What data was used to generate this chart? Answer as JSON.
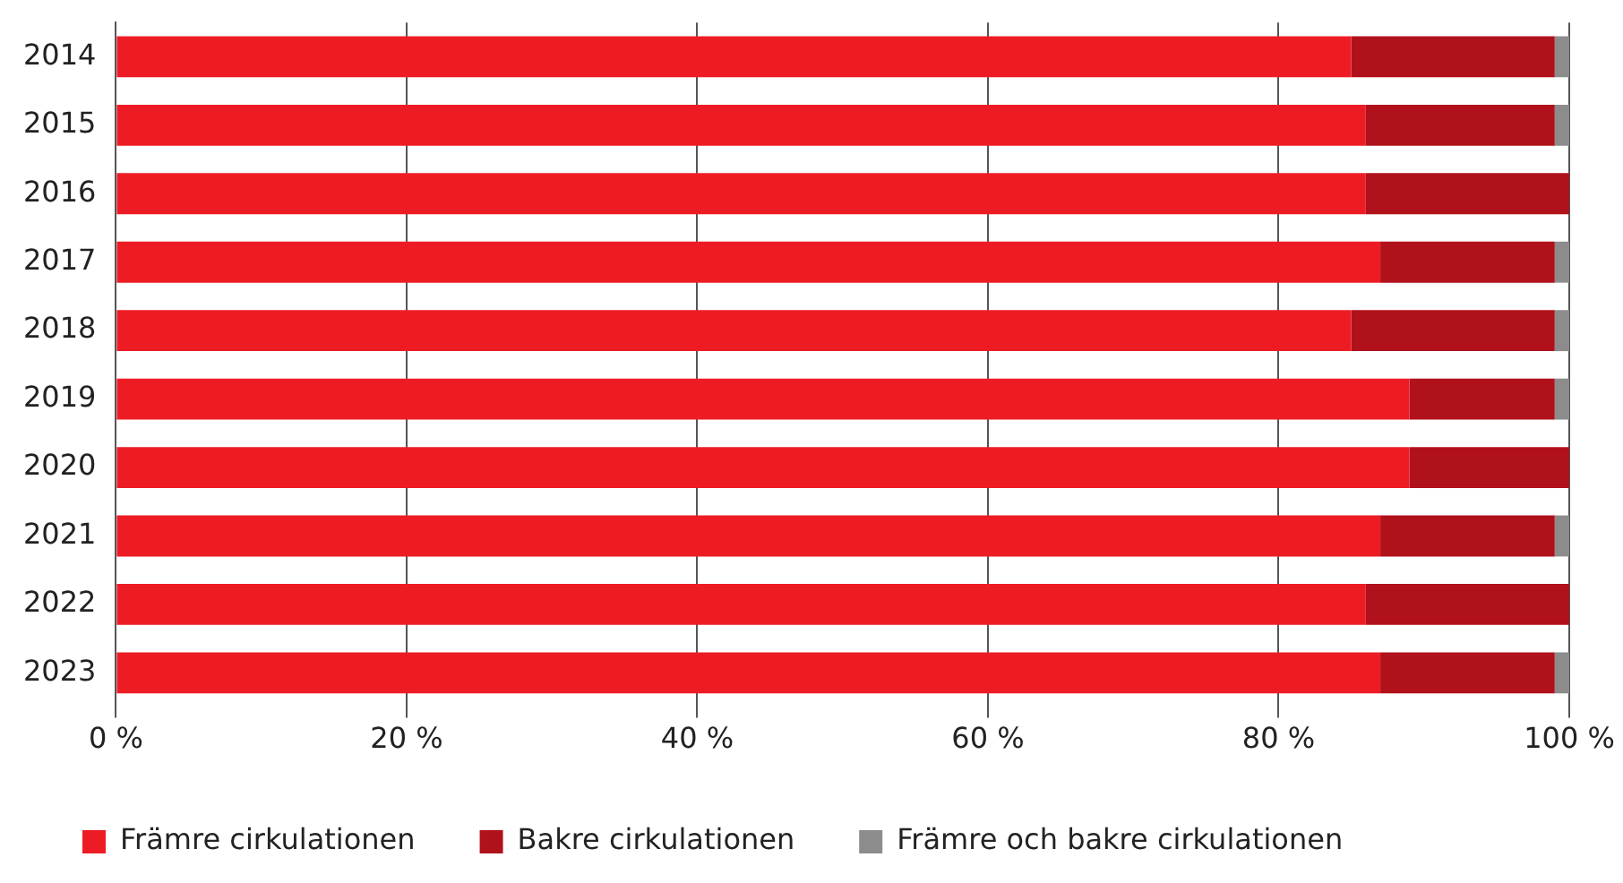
{
  "chart_data": {
    "type": "bar",
    "orientation": "horizontal",
    "stacked": true,
    "categories": [
      "2014",
      "2015",
      "2016",
      "2017",
      "2018",
      "2019",
      "2020",
      "2021",
      "2022",
      "2023"
    ],
    "series": [
      {
        "name": "Främre cirkulationen",
        "color": "#ed1c24",
        "values": [
          85,
          86,
          86,
          87,
          85,
          89,
          89,
          87,
          86,
          87
        ]
      },
      {
        "name": "Bakre cirkulationen",
        "color": "#b0111b",
        "values": [
          14,
          13,
          14,
          12,
          14,
          10,
          11,
          12,
          14,
          12
        ]
      },
      {
        "name": "Främre och bakre cirkulationen",
        "color": "#8c8c8c",
        "values": [
          1,
          1,
          0,
          1,
          1,
          1,
          0,
          1,
          0,
          1
        ]
      }
    ],
    "xlim": [
      0,
      100
    ],
    "xticks": [
      {
        "value": 0,
        "label": "0 %"
      },
      {
        "value": 20,
        "label": "20 %"
      },
      {
        "value": 40,
        "label": "40 %"
      },
      {
        "value": 60,
        "label": "60 %"
      },
      {
        "value": 80,
        "label": "80 %"
      },
      {
        "value": 100,
        "label": "100 %"
      }
    ],
    "grid": "x",
    "legend": "bottom left"
  }
}
